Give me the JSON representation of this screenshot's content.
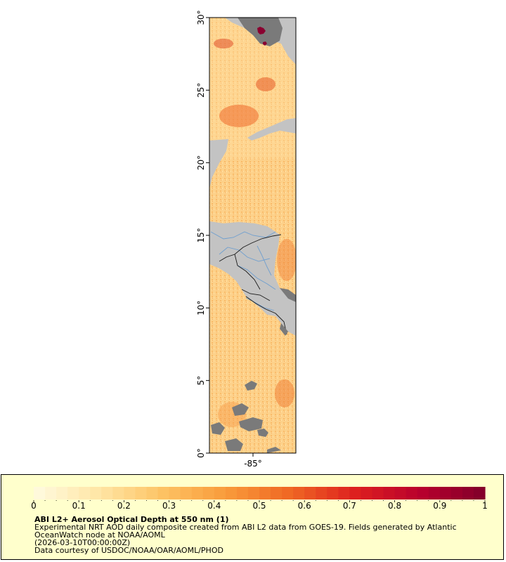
{
  "map": {
    "lat_range": [
      0,
      30
    ],
    "lon_ticks": [
      "-85°"
    ],
    "lat_ticks": [
      "0°",
      "5°",
      "10°",
      "15°",
      "20°",
      "25°",
      "30°"
    ],
    "colors": {
      "land": "#c3c3c3",
      "no_data": "#7a7a7a",
      "rivers": "#6f9fcf",
      "borders": "#1a1a1a",
      "frame": "#000000"
    }
  },
  "legend": {
    "title": "ABI L2+ Aerosol Optical Depth at 550 nm (1)",
    "description_line1": "Experimental NRT AOD daily composite created from ABI L2 data from GOES-19. Fields generated by Atlantic",
    "description_line2": "OceanWatch node at NOAA/AOML",
    "date": "(2026-03-10T00:00:00Z)",
    "credit": "Data courtesy of USDOC/NOAA/OAR/AOML/PHOD",
    "colorbar_ticks": [
      "0",
      "0.1",
      "0.2",
      "0.3",
      "0.4",
      "0.5",
      "0.6",
      "0.7",
      "0.8",
      "0.9",
      "1"
    ],
    "colorbar_range": [
      0,
      1
    ],
    "colorbar_stops": [
      "#fffbe0",
      "#ffe6a6",
      "#fdc364",
      "#f99a3a",
      "#ef6623",
      "#dd1f1f",
      "#b8002d",
      "#80002a"
    ],
    "background": "#ffffcc"
  }
}
